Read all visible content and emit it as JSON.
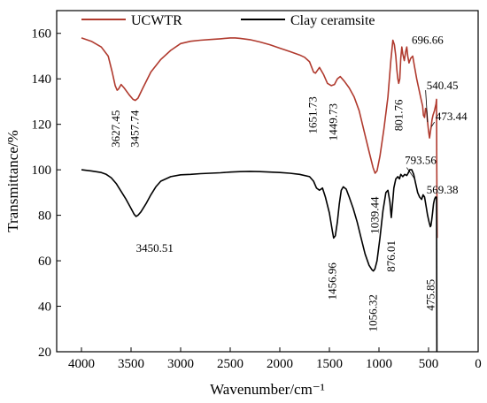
{
  "chart_data": {
    "type": "line",
    "title": "",
    "xlabel": "Wavenumber/cm⁻¹",
    "ylabel": "Transmittance/%",
    "xlim": [
      4250,
      0
    ],
    "ylim": [
      20,
      170
    ],
    "x_ticks": [
      4000,
      3500,
      3000,
      2500,
      2000,
      1500,
      1000,
      500,
      0
    ],
    "y_ticks": [
      20,
      40,
      60,
      80,
      100,
      120,
      140,
      160
    ],
    "grid": false,
    "legend_position": "top",
    "series": [
      {
        "name": "UCWTR",
        "color": "#b03a2e",
        "points": [
          [
            4000,
            158
          ],
          [
            3900,
            156.5
          ],
          [
            3800,
            154
          ],
          [
            3730,
            150
          ],
          [
            3690,
            143
          ],
          [
            3660,
            137
          ],
          [
            3640,
            135
          ],
          [
            3627,
            135.5
          ],
          [
            3600,
            137.5
          ],
          [
            3570,
            136
          ],
          [
            3520,
            133
          ],
          [
            3480,
            131
          ],
          [
            3457,
            130.5
          ],
          [
            3430,
            131.5
          ],
          [
            3380,
            136
          ],
          [
            3300,
            143
          ],
          [
            3200,
            148.5
          ],
          [
            3100,
            152.5
          ],
          [
            3000,
            155.5
          ],
          [
            2900,
            156.5
          ],
          [
            2800,
            157
          ],
          [
            2700,
            157.3
          ],
          [
            2600,
            157.6
          ],
          [
            2500,
            158
          ],
          [
            2450,
            158
          ],
          [
            2400,
            157.8
          ],
          [
            2300,
            157.2
          ],
          [
            2200,
            156.2
          ],
          [
            2100,
            155
          ],
          [
            2000,
            153.5
          ],
          [
            1900,
            152
          ],
          [
            1800,
            150.5
          ],
          [
            1750,
            149.5
          ],
          [
            1700,
            147.5
          ],
          [
            1660,
            143
          ],
          [
            1640,
            142.5
          ],
          [
            1600,
            145
          ],
          [
            1560,
            142
          ],
          [
            1520,
            138
          ],
          [
            1480,
            137
          ],
          [
            1449,
            137.5
          ],
          [
            1420,
            140
          ],
          [
            1390,
            141
          ],
          [
            1350,
            139
          ],
          [
            1300,
            136
          ],
          [
            1250,
            132
          ],
          [
            1200,
            126
          ],
          [
            1150,
            117
          ],
          [
            1100,
            108
          ],
          [
            1060,
            101
          ],
          [
            1039,
            98.5
          ],
          [
            1020,
            99.5
          ],
          [
            990,
            106
          ],
          [
            950,
            118
          ],
          [
            910,
            132
          ],
          [
            880,
            148
          ],
          [
            860,
            157
          ],
          [
            845,
            155
          ],
          [
            830,
            150
          ],
          [
            820,
            144
          ],
          [
            810,
            140
          ],
          [
            801,
            138
          ],
          [
            790,
            140
          ],
          [
            780,
            149
          ],
          [
            770,
            154
          ],
          [
            760,
            151
          ],
          [
            745,
            148
          ],
          [
            730,
            152
          ],
          [
            720,
            154
          ],
          [
            710,
            150
          ],
          [
            697,
            147
          ],
          [
            680,
            149
          ],
          [
            660,
            150
          ],
          [
            640,
            145
          ],
          [
            620,
            140
          ],
          [
            600,
            136
          ],
          [
            580,
            132
          ],
          [
            560,
            128
          ],
          [
            552,
            124
          ],
          [
            540,
            123
          ],
          [
            530,
            127
          ],
          [
            520,
            126
          ],
          [
            510,
            121
          ],
          [
            500,
            117
          ],
          [
            490,
            114
          ],
          [
            480,
            117
          ],
          [
            473,
            119
          ],
          [
            465,
            122
          ],
          [
            455,
            124
          ],
          [
            440,
            126
          ],
          [
            425,
            129
          ],
          [
            420,
            131
          ],
          [
            417,
            100
          ],
          [
            413,
            70
          ]
        ]
      },
      {
        "name": "Clay ceramsite",
        "color": "#000000",
        "points": [
          [
            4000,
            100
          ],
          [
            3900,
            99.5
          ],
          [
            3800,
            98.8
          ],
          [
            3750,
            98
          ],
          [
            3700,
            96.5
          ],
          [
            3650,
            94
          ],
          [
            3600,
            90.5
          ],
          [
            3550,
            87
          ],
          [
            3500,
            83
          ],
          [
            3470,
            80.5
          ],
          [
            3450,
            79.5
          ],
          [
            3430,
            80
          ],
          [
            3400,
            81.5
          ],
          [
            3350,
            85
          ],
          [
            3300,
            89
          ],
          [
            3250,
            92.5
          ],
          [
            3200,
            95
          ],
          [
            3100,
            97
          ],
          [
            3000,
            97.8
          ],
          [
            2900,
            98
          ],
          [
            2800,
            98.3
          ],
          [
            2700,
            98.5
          ],
          [
            2600,
            98.7
          ],
          [
            2500,
            99
          ],
          [
            2400,
            99.2
          ],
          [
            2300,
            99.3
          ],
          [
            2200,
            99.2
          ],
          [
            2100,
            99
          ],
          [
            2000,
            98.8
          ],
          [
            1900,
            98.5
          ],
          [
            1800,
            98
          ],
          [
            1700,
            97
          ],
          [
            1660,
            95
          ],
          [
            1630,
            92
          ],
          [
            1600,
            91
          ],
          [
            1570,
            92
          ],
          [
            1540,
            88
          ],
          [
            1500,
            81
          ],
          [
            1470,
            73
          ],
          [
            1457,
            70
          ],
          [
            1440,
            71
          ],
          [
            1420,
            77
          ],
          [
            1400,
            85
          ],
          [
            1380,
            91
          ],
          [
            1360,
            92.5
          ],
          [
            1330,
            91.5
          ],
          [
            1300,
            88
          ],
          [
            1260,
            83
          ],
          [
            1220,
            77
          ],
          [
            1180,
            70
          ],
          [
            1140,
            63
          ],
          [
            1100,
            58
          ],
          [
            1070,
            56
          ],
          [
            1056,
            55.5
          ],
          [
            1040,
            56.5
          ],
          [
            1020,
            60
          ],
          [
            990,
            70
          ],
          [
            960,
            82
          ],
          [
            930,
            90
          ],
          [
            910,
            91
          ],
          [
            890,
            86
          ],
          [
            876,
            79
          ],
          [
            862,
            86
          ],
          [
            850,
            92
          ],
          [
            830,
            96
          ],
          [
            810,
            97
          ],
          [
            793,
            96
          ],
          [
            780,
            98
          ],
          [
            760,
            97
          ],
          [
            740,
            98
          ],
          [
            720,
            97.5
          ],
          [
            700,
            99
          ],
          [
            690,
            100
          ],
          [
            670,
            100
          ],
          [
            650,
            98
          ],
          [
            630,
            94
          ],
          [
            610,
            90
          ],
          [
            590,
            88
          ],
          [
            570,
            87
          ],
          [
            555,
            89
          ],
          [
            540,
            88
          ],
          [
            525,
            84
          ],
          [
            510,
            80
          ],
          [
            495,
            77
          ],
          [
            482,
            75
          ],
          [
            476,
            75.5
          ],
          [
            468,
            78
          ],
          [
            460,
            81
          ],
          [
            450,
            85
          ],
          [
            440,
            87
          ],
          [
            430,
            88
          ],
          [
            420,
            88
          ],
          [
            418,
            60
          ],
          [
            416,
            20
          ]
        ]
      }
    ],
    "annotations": [
      {
        "text": "3627.45",
        "x": 3650,
        "y": 118,
        "rotate": -90,
        "series": 0
      },
      {
        "text": "3457.74",
        "x": 3458,
        "y": 118,
        "rotate": -90,
        "series": 0
      },
      {
        "text": "1651.73",
        "x": 1665,
        "y": 124,
        "rotate": -90,
        "series": 0
      },
      {
        "text": "1449.73",
        "x": 1462,
        "y": 121,
        "rotate": -90,
        "series": 0
      },
      {
        "text": "801.76",
        "x": 800,
        "y": 124,
        "rotate": -90,
        "series": 0
      },
      {
        "text": "1039.44",
        "x": 1040,
        "y": 80,
        "rotate": -90,
        "series": 0
      },
      {
        "text": "696.66",
        "x": 670,
        "y": 155.5,
        "rotate": 0,
        "series": 0
      },
      {
        "text": "540.45",
        "x": 520,
        "y": 135.5,
        "rotate": 0,
        "series": 0
      },
      {
        "text": "473.44",
        "x": 430,
        "y": 121.8,
        "rotate": 0,
        "series": 0
      },
      {
        "text": "3450.51",
        "x": 3450,
        "y": 64,
        "rotate": 0,
        "series": 1
      },
      {
        "text": "1456.96",
        "x": 1468,
        "y": 51,
        "rotate": -90,
        "series": 1
      },
      {
        "text": "1056.32",
        "x": 1060,
        "y": 37,
        "rotate": -90,
        "series": 1
      },
      {
        "text": "876.01",
        "x": 876,
        "y": 62,
        "rotate": -90,
        "series": 1
      },
      {
        "text": "793.56",
        "x": 740,
        "y": 102.5,
        "rotate": 0,
        "series": 1
      },
      {
        "text": "569.38",
        "x": 520,
        "y": 89.5,
        "rotate": 0,
        "series": 1
      },
      {
        "text": "475.85",
        "x": 478,
        "y": 45,
        "rotate": -90,
        "series": 1
      }
    ],
    "leaders": [
      {
        "from": [
          720,
          101
        ],
        "to": [
          640,
          96
        ]
      },
      {
        "from": [
          540,
          88.5
        ],
        "to": [
          568,
          88
        ]
      },
      {
        "from": [
          530,
          135
        ],
        "to": [
          510,
          121
        ]
      },
      {
        "from": [
          440,
          121
        ],
        "to": [
          470,
          119
        ]
      }
    ]
  }
}
